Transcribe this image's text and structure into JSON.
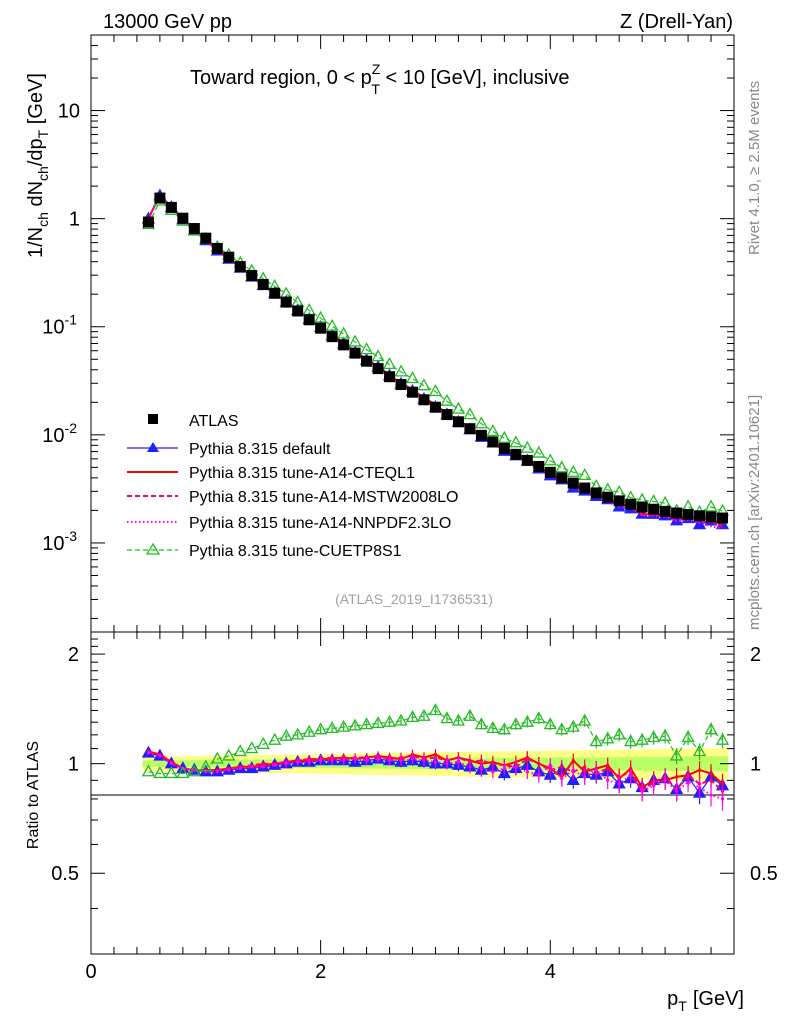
{
  "header": {
    "left": "13000 GeV pp",
    "right": "Z (Drell-Yan)"
  },
  "side_text": {
    "rivet": "Rivet 4.1.0, ≥ 2.5M events",
    "mcplots": "mcplots.cern.ch [arXiv:2401.10621]"
  },
  "chart_data": {
    "type": "scatter",
    "title": "Toward region, 0 < p_T^Z < 10 [GeV], inclusive",
    "title_parts": {
      "pre": "Toward region, 0 < p",
      "sup": "Z",
      "sub": "T",
      "post": " < 10 [GeV], inclusive"
    },
    "reference": "(ATLAS_2019_I1736531)",
    "xlabel": "p_T [GeV]",
    "xlabel_parts": {
      "main": "p",
      "sub": "T",
      "unit": "[GeV]"
    },
    "ylabel": "1/N_ch dN_ch/dp_T [GeV]",
    "ylabel_parts": {
      "a": "1/N",
      "a_sub": "ch",
      "b": " dN",
      "b_sub": "ch",
      "c": "/dp",
      "c_sub": "T",
      "d": " [GeV]"
    },
    "ratio_ylabel": "Ratio to ATLAS",
    "xlim": [
      0,
      5.6
    ],
    "ylim": [
      0.00015,
      50
    ],
    "ylog": true,
    "ratio_ylim": [
      0.3,
      2.3
    ],
    "x_ticks": [
      "0",
      "2",
      "4"
    ],
    "y_ticks": [
      {
        "base": "10",
        "exp": "-3",
        "value": 0.001
      },
      {
        "base": "10",
        "exp": "-2",
        "value": 0.01
      },
      {
        "base": "10",
        "exp": "-1",
        "value": 0.1
      },
      {
        "base": "1",
        "exp": "",
        "value": 1
      },
      {
        "base": "10",
        "exp": "",
        "value": 10
      }
    ],
    "ratio_ticks": [
      "0.5",
      "1",
      "2"
    ],
    "legend": [
      "ATLAS",
      "Pythia 8.315 default",
      "Pythia 8.315 tune-A14-CTEQL1",
      "Pythia 8.315 tune-A14-MSTW2008LO",
      "Pythia 8.315 tune-A14-NNPDF2.3LO",
      "Pythia 8.315 tune-CUETP8S1"
    ],
    "colors": {
      "data": "#000000",
      "default": "#2020ff",
      "cteql1": "#ff0000",
      "mstw": "#ff0066",
      "nnpdf": "#ff00ff",
      "cuetp": "#22bb22",
      "band_inner": "#bbff66",
      "band_outer": "#ffff88"
    },
    "x": [
      0.5,
      0.6,
      0.7,
      0.8,
      0.9,
      1.0,
      1.1,
      1.2,
      1.3,
      1.4,
      1.5,
      1.6,
      1.7,
      1.8,
      1.9,
      2.0,
      2.1,
      2.2,
      2.3,
      2.4,
      2.5,
      2.6,
      2.7,
      2.8,
      2.9,
      3.0,
      3.1,
      3.2,
      3.3,
      3.4,
      3.5,
      3.6,
      3.7,
      3.8,
      3.9,
      4.0,
      4.1,
      4.2,
      4.3,
      4.4,
      4.5,
      4.6,
      4.7,
      4.8,
      4.9,
      5.0,
      5.1,
      5.2,
      5.3,
      5.4,
      5.5
    ],
    "atlas": [
      0.93,
      1.55,
      1.27,
      1.01,
      0.81,
      0.66,
      0.53,
      0.44,
      0.36,
      0.298,
      0.246,
      0.204,
      0.169,
      0.14,
      0.116,
      0.097,
      0.081,
      0.068,
      0.057,
      0.048,
      0.041,
      0.0345,
      0.0292,
      0.0248,
      0.0211,
      0.018,
      0.0154,
      0.0132,
      0.0114,
      0.0099,
      0.0086,
      0.0075,
      0.0066,
      0.0058,
      0.0051,
      0.0045,
      0.004,
      0.00358,
      0.00322,
      0.0029,
      0.00265,
      0.00245,
      0.00228,
      0.00215,
      0.00205,
      0.00196,
      0.00189,
      0.00183,
      0.00178,
      0.00174,
      0.0017
    ],
    "series": [
      {
        "name": "Pythia 8.315 default",
        "key": "default",
        "ratio": [
          1.07,
          1.05,
          1.0,
          0.97,
          0.96,
          0.95,
          0.95,
          0.96,
          0.97,
          0.97,
          0.98,
          0.99,
          1.0,
          1.01,
          1.01,
          1.02,
          1.02,
          1.02,
          1.01,
          1.02,
          1.03,
          1.02,
          1.01,
          1.02,
          1.01,
          1.0,
          1.0,
          0.99,
          0.98,
          0.96,
          0.98,
          0.94,
          0.97,
          0.99,
          0.95,
          0.93,
          0.96,
          0.9,
          0.94,
          0.93,
          0.95,
          0.88,
          0.91,
          0.86,
          0.9,
          0.91,
          0.85,
          0.92,
          0.83,
          0.92,
          0.87
        ]
      },
      {
        "name": "Pythia 8.315 tune-A14-CTEQL1",
        "key": "cteql1",
        "ratio": [
          1.08,
          1.06,
          1.01,
          0.97,
          0.96,
          0.96,
          0.96,
          0.97,
          0.98,
          0.98,
          0.99,
          1.0,
          1.01,
          1.02,
          1.02,
          1.03,
          1.03,
          1.04,
          1.03,
          1.04,
          1.05,
          1.04,
          1.03,
          1.06,
          1.04,
          1.06,
          1.02,
          1.04,
          1.02,
          1.0,
          1.01,
          0.99,
          1.01,
          1.04,
          1.0,
          0.97,
          0.92,
          1.02,
          0.95,
          0.97,
          0.99,
          0.91,
          0.97,
          0.86,
          0.9,
          0.9,
          0.92,
          0.93,
          0.96,
          0.94,
          0.88
        ]
      },
      {
        "name": "Pythia 8.315 tune-A14-MSTW2008LO",
        "key": "mstw",
        "ratio": [
          1.08,
          1.06,
          1.01,
          0.97,
          0.96,
          0.96,
          0.96,
          0.97,
          0.98,
          0.99,
          1.0,
          1.0,
          1.01,
          1.02,
          1.03,
          1.03,
          1.04,
          1.03,
          1.04,
          1.04,
          1.05,
          1.03,
          1.04,
          1.05,
          1.03,
          1.04,
          1.02,
          1.04,
          1.01,
          1.02,
          1.0,
          0.99,
          0.98,
          1.03,
          1.0,
          0.96,
          0.98,
          0.95,
          0.98,
          0.94,
          0.97,
          0.92,
          0.95,
          0.84,
          0.89,
          0.92,
          0.85,
          0.93,
          0.88,
          0.9,
          0.84
        ]
      },
      {
        "name": "Pythia 8.315 tune-A14-NNPDF2.3LO",
        "key": "nnpdf",
        "ratio": [
          1.07,
          1.05,
          1.0,
          0.97,
          0.96,
          0.95,
          0.95,
          0.96,
          0.97,
          0.98,
          0.98,
          0.99,
          1.0,
          1.01,
          1.01,
          1.02,
          1.02,
          1.02,
          1.03,
          1.02,
          1.03,
          1.02,
          1.02,
          1.03,
          1.02,
          1.01,
          1.0,
          1.01,
          0.98,
          0.97,
          0.95,
          0.97,
          0.98,
          0.95,
          0.93,
          0.99,
          0.91,
          0.96,
          0.92,
          0.96,
          0.9,
          0.88,
          0.93,
          0.84,
          0.87,
          0.9,
          0.84,
          0.89,
          0.86,
          0.82,
          0.8
        ]
      },
      {
        "name": "Pythia 8.315 tune-CUETP8S1",
        "key": "cuetp",
        "ratio": [
          0.95,
          0.94,
          0.94,
          0.94,
          0.95,
          0.98,
          1.03,
          1.05,
          1.08,
          1.1,
          1.13,
          1.16,
          1.19,
          1.2,
          1.22,
          1.24,
          1.25,
          1.26,
          1.27,
          1.28,
          1.29,
          1.3,
          1.31,
          1.34,
          1.35,
          1.4,
          1.33,
          1.31,
          1.35,
          1.28,
          1.25,
          1.24,
          1.28,
          1.3,
          1.33,
          1.28,
          1.24,
          1.26,
          1.31,
          1.15,
          1.17,
          1.2,
          1.15,
          1.16,
          1.18,
          1.19,
          1.05,
          1.18,
          1.08,
          1.24,
          1.16
        ]
      }
    ]
  }
}
